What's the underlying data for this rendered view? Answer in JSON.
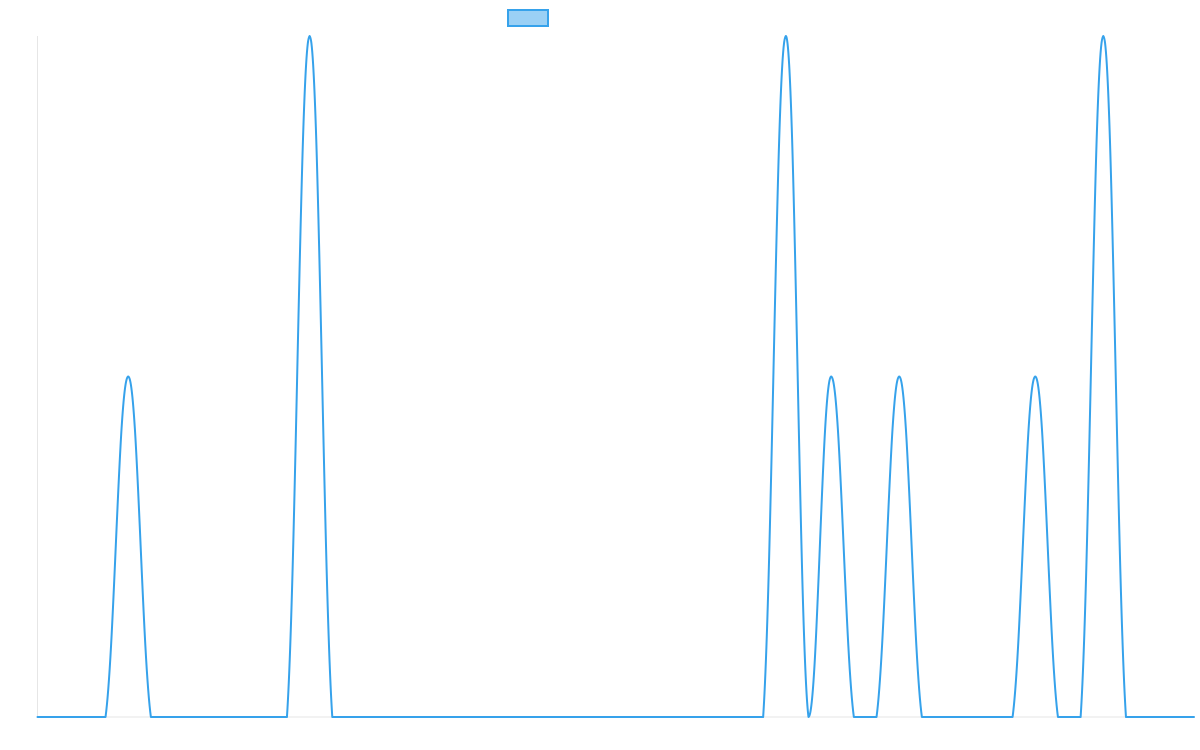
{
  "chart_data": {
    "type": "line",
    "title": "",
    "xlabel": "",
    "ylabel": "",
    "grid": false,
    "legend": {
      "placement": "top-center",
      "entries": [
        {
          "label": "",
          "color": "#36a2eb",
          "fill": "#9ad0f5"
        }
      ]
    },
    "ylim": [
      0,
      2
    ],
    "x": [
      0,
      1,
      2,
      3,
      4,
      5,
      6,
      7,
      8,
      9,
      10,
      11,
      12,
      13,
      14,
      15,
      16,
      17,
      18,
      19,
      20,
      21,
      22,
      23,
      24,
      25,
      26,
      27,
      28,
      29,
      30,
      31,
      32,
      33,
      34,
      35,
      36,
      37,
      38,
      39,
      40,
      41,
      42,
      43,
      44,
      45,
      46,
      47,
      48,
      49,
      50,
      51
    ],
    "series": [
      {
        "color": "#36a2eb",
        "values": [
          0,
          0,
          0,
          0,
          1,
          0,
          0,
          0,
          0,
          0,
          0,
          0,
          2,
          0,
          0,
          0,
          0,
          0,
          0,
          0,
          0,
          0,
          0,
          0,
          0,
          0,
          0,
          0,
          0,
          0,
          0,
          0,
          0,
          2,
          0,
          1,
          0,
          0,
          1,
          0,
          0,
          0,
          0,
          0,
          1,
          0,
          0,
          2,
          0,
          0,
          0,
          0
        ]
      }
    ]
  }
}
